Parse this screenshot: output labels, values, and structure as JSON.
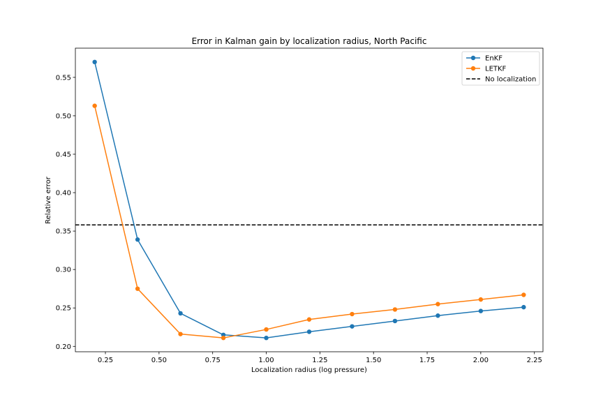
{
  "chart_data": {
    "type": "line",
    "title": "Error in Kalman gain by localization radius, North Pacific",
    "xlabel": "Localization radius (log pressure)",
    "ylabel": "Relative error",
    "xlim": [
      0.11,
      2.29
    ],
    "ylim": [
      0.193,
      0.588
    ],
    "xticks": [
      0.25,
      0.5,
      0.75,
      1.0,
      1.25,
      1.5,
      1.75,
      2.0,
      2.25
    ],
    "xtick_labels": [
      "0.25",
      "0.50",
      "0.75",
      "1.00",
      "1.25",
      "1.50",
      "1.75",
      "2.00",
      "2.25"
    ],
    "yticks": [
      0.2,
      0.25,
      0.3,
      0.35,
      0.4,
      0.45,
      0.5,
      0.55
    ],
    "ytick_labels": [
      "0.20",
      "0.25",
      "0.30",
      "0.35",
      "0.40",
      "0.45",
      "0.50",
      "0.55"
    ],
    "x": [
      0.2,
      0.4,
      0.6,
      0.8,
      1.0,
      1.2,
      1.4,
      1.6,
      1.8,
      2.0,
      2.2
    ],
    "series": [
      {
        "name": "EnKF",
        "color": "#1f77b4",
        "values": [
          0.57,
          0.339,
          0.243,
          0.215,
          0.211,
          0.219,
          0.226,
          0.233,
          0.24,
          0.246,
          0.251
        ]
      },
      {
        "name": "LETKF",
        "color": "#ff7f0e",
        "values": [
          0.513,
          0.275,
          0.216,
          0.211,
          0.222,
          0.235,
          0.242,
          0.248,
          0.255,
          0.261,
          0.267
        ]
      }
    ],
    "reference_line": {
      "name": "No localization",
      "value": 0.358,
      "color": "#000000",
      "style": "dashed"
    },
    "legend": "top-right",
    "grid": false
  }
}
